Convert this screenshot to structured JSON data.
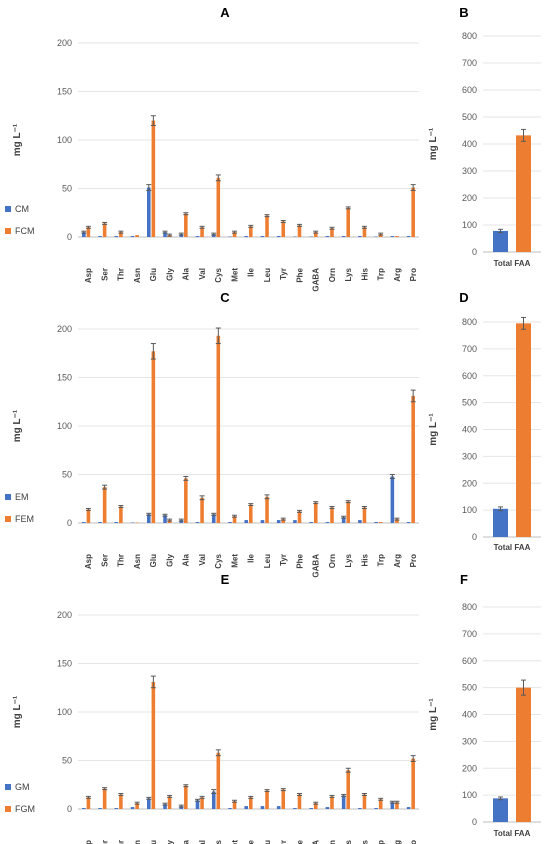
{
  "chart_data": [
    {
      "id": "A",
      "type": "bar",
      "title": "A",
      "ylabel": "mg L⁻¹",
      "ylim": [
        0,
        200
      ],
      "yticks": [
        0,
        50,
        100,
        150,
        200
      ],
      "grid": true,
      "legend_position": "left",
      "categories": [
        "Asp",
        "Ser",
        "Thr",
        "Asn",
        "Glu",
        "Gly",
        "Ala",
        "Val",
        "Cys",
        "Met",
        "Ile",
        "Leu",
        "Tyr",
        "Phe",
        "GABA",
        "Orn",
        "Lys",
        "His",
        "Trp",
        "Arg",
        "Pro"
      ],
      "series": [
        {
          "name": "CM",
          "color": "#4472C4",
          "values": [
            5,
            1,
            1,
            1,
            51,
            5,
            3,
            1,
            3,
            0.5,
            1,
            1,
            1,
            0.5,
            0.5,
            1,
            1,
            1,
            0.5,
            1,
            1
          ],
          "errors": [
            1,
            0,
            0,
            0,
            3,
            1,
            1,
            0,
            1,
            0,
            0,
            0,
            0,
            0,
            0,
            0,
            0,
            0,
            0,
            0,
            0
          ]
        },
        {
          "name": "FCM",
          "color": "#ED7D31",
          "values": [
            10,
            14,
            5,
            2,
            120,
            2,
            24,
            10,
            61,
            5,
            11,
            22,
            16,
            12,
            5,
            9,
            30,
            10,
            3,
            1,
            51
          ],
          "errors": [
            1,
            1,
            1,
            0,
            5,
            1,
            1,
            1,
            3,
            1,
            1,
            1,
            1,
            1,
            1,
            1,
            1,
            1,
            1,
            0,
            3
          ]
        }
      ]
    },
    {
      "id": "B",
      "type": "bar",
      "title": "B",
      "ylabel": "mg L⁻¹",
      "ylim": [
        0,
        800
      ],
      "yticks": [
        0,
        100,
        200,
        300,
        400,
        500,
        600,
        700,
        800
      ],
      "grid": true,
      "categories": [
        "Total FAA"
      ],
      "series": [
        {
          "name": "CM",
          "color": "#4472C4",
          "values": [
            78
          ],
          "errors": [
            6
          ]
        },
        {
          "name": "FCM",
          "color": "#ED7D31",
          "values": [
            432
          ],
          "errors": [
            22
          ]
        }
      ]
    },
    {
      "id": "C",
      "type": "bar",
      "title": "C",
      "ylabel": "mg L⁻¹",
      "ylim": [
        0,
        200
      ],
      "yticks": [
        0,
        50,
        100,
        150,
        200
      ],
      "grid": true,
      "legend_position": "left",
      "categories": [
        "Asp",
        "Ser",
        "Thr",
        "Asn",
        "Glu",
        "Gly",
        "Ala",
        "Val",
        "Cys",
        "Met",
        "Ile",
        "Leu",
        "Tyr",
        "Phe",
        "GABA",
        "Orn",
        "Lys",
        "His",
        "Trp",
        "Arg",
        "Pro"
      ],
      "series": [
        {
          "name": "EM",
          "color": "#4472C4",
          "values": [
            1,
            1,
            1,
            0.5,
            9,
            8,
            3,
            1,
            9,
            1,
            3,
            3,
            3,
            3,
            1,
            1,
            6,
            3,
            1,
            48,
            1
          ],
          "errors": [
            0,
            0,
            0,
            0,
            1,
            1,
            1,
            0,
            1,
            0,
            0,
            0,
            0,
            0,
            0,
            0,
            1,
            0,
            0,
            2,
            0
          ]
        },
        {
          "name": "FEM",
          "color": "#ED7D31",
          "values": [
            14,
            37,
            17,
            0.5,
            177,
            3,
            46,
            26,
            193,
            7,
            19,
            27,
            4,
            12,
            21,
            16,
            22,
            16,
            1,
            4,
            131
          ],
          "errors": [
            1,
            2,
            1,
            0,
            8,
            1,
            2,
            2,
            8,
            1,
            1,
            2,
            1,
            1,
            1,
            1,
            1,
            1,
            0,
            1,
            6
          ]
        }
      ]
    },
    {
      "id": "D",
      "type": "bar",
      "title": "D",
      "ylabel": "mg L⁻¹",
      "ylim": [
        0,
        800
      ],
      "yticks": [
        0,
        100,
        200,
        300,
        400,
        500,
        600,
        700,
        800
      ],
      "grid": true,
      "categories": [
        "Total FAA"
      ],
      "series": [
        {
          "name": "EM",
          "color": "#4472C4",
          "values": [
            105
          ],
          "errors": [
            7
          ]
        },
        {
          "name": "FEM",
          "color": "#ED7D31",
          "values": [
            795
          ],
          "errors": [
            22
          ]
        }
      ]
    },
    {
      "id": "E",
      "type": "bar",
      "title": "E",
      "ylabel": "mg L⁻¹",
      "ylim": [
        0,
        200
      ],
      "yticks": [
        0,
        50,
        100,
        150,
        200
      ],
      "grid": true,
      "legend_position": "left",
      "categories": [
        "Asp",
        "Ser",
        "Thr",
        "Asn",
        "Glu",
        "Gly",
        "Ala",
        "Val",
        "Cys",
        "Met",
        "Ile",
        "Leu",
        "Tyr",
        "Phe",
        "GABA",
        "Orn",
        "Lys",
        "His",
        "Trp",
        "Arg",
        "Pro"
      ],
      "series": [
        {
          "name": "GM",
          "color": "#4472C4",
          "values": [
            1,
            1,
            1,
            2,
            11,
            5,
            3,
            9,
            18,
            1,
            3,
            3,
            3,
            1,
            1,
            2,
            14,
            1,
            1,
            7,
            2
          ],
          "errors": [
            0,
            0,
            0,
            0,
            1,
            1,
            1,
            1,
            2,
            0,
            0,
            0,
            0,
            0,
            0,
            0,
            1,
            0,
            0,
            1,
            0
          ]
        },
        {
          "name": "FGM",
          "color": "#ED7D31",
          "values": [
            12,
            21,
            15,
            6,
            131,
            13,
            24,
            12,
            58,
            8,
            12,
            19,
            20,
            15,
            6,
            13,
            40,
            15,
            10,
            7,
            52
          ],
          "errors": [
            1,
            1,
            1,
            1,
            6,
            1,
            1,
            1,
            3,
            1,
            1,
            1,
            1,
            1,
            1,
            1,
            2,
            1,
            1,
            1,
            3
          ]
        }
      ]
    },
    {
      "id": "F",
      "type": "bar",
      "title": "F",
      "ylabel": "mg L⁻¹",
      "ylim": [
        0,
        800
      ],
      "yticks": [
        0,
        100,
        200,
        300,
        400,
        500,
        600,
        700,
        800
      ],
      "grid": true,
      "categories": [
        "Total FAA"
      ],
      "series": [
        {
          "name": "GM",
          "color": "#4472C4",
          "values": [
            88
          ],
          "errors": [
            5
          ]
        },
        {
          "name": "FGM",
          "color": "#ED7D31",
          "values": [
            500
          ],
          "errors": [
            28
          ]
        }
      ]
    }
  ],
  "colors": {
    "axis": "#BFBFBF",
    "grid": "#E6E6E6",
    "error_bar": "#595959"
  }
}
